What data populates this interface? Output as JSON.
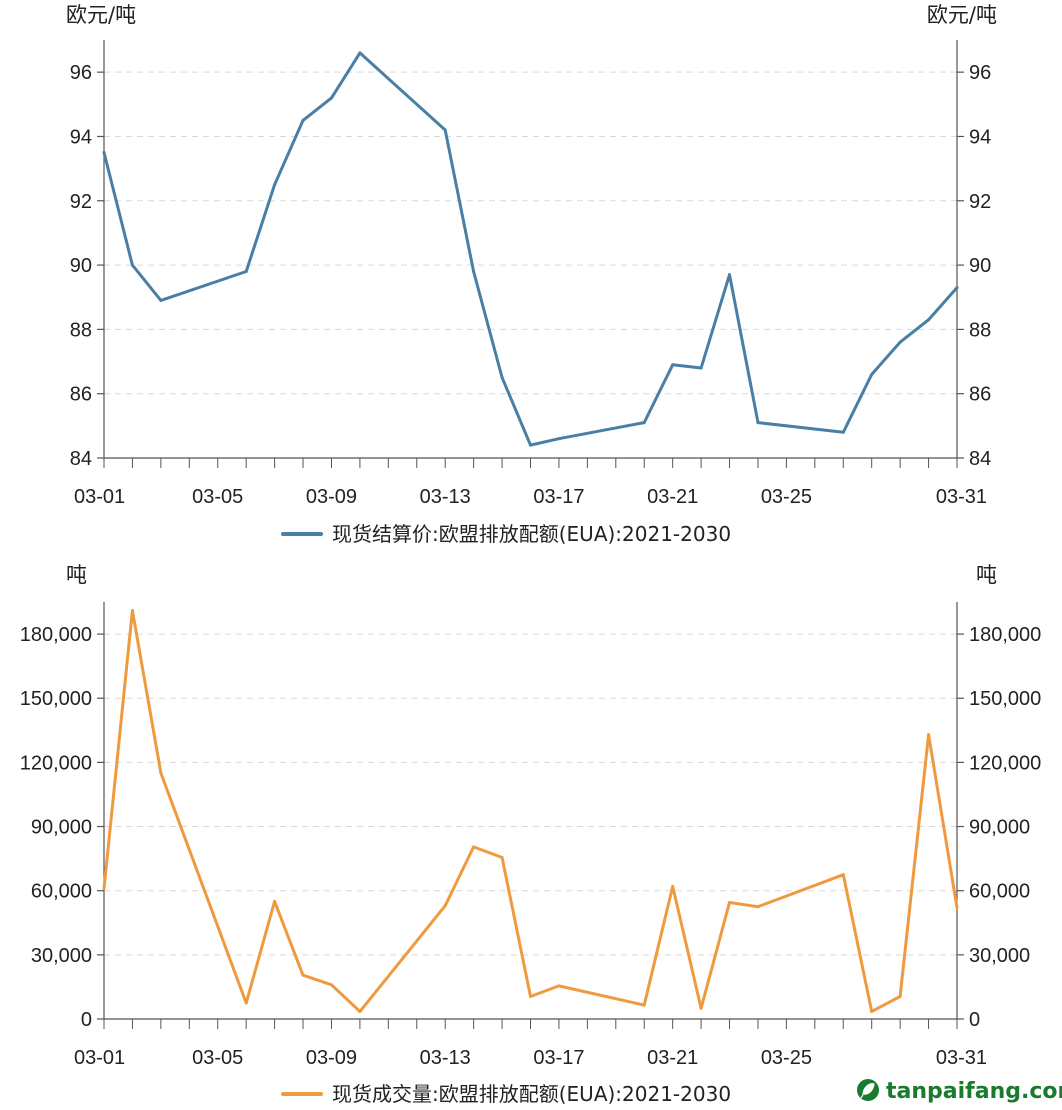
{
  "chart_data": [
    {
      "type": "line",
      "unit_left": "欧元/吨",
      "unit_right": "欧元/吨",
      "ylim": [
        84,
        97
      ],
      "yticks": [
        84,
        86,
        88,
        90,
        92,
        94,
        96
      ],
      "ytick_labels": [
        "84",
        "86",
        "88",
        "90",
        "92",
        "94",
        "96"
      ],
      "xticks": [
        "03-01",
        "03-05",
        "03-09",
        "03-13",
        "03-17",
        "03-21",
        "03-25",
        "03-31"
      ],
      "grid": true,
      "legend_placement": "bottom",
      "series": [
        {
          "name": "现货结算价:欧盟排放配额(EUA):2021-2030",
          "color": "#4a7fa5",
          "x": [
            "03-01",
            "03-02",
            "03-03",
            "03-06",
            "03-07",
            "03-08",
            "03-09",
            "03-10",
            "03-13",
            "03-14",
            "03-15",
            "03-16",
            "03-17",
            "03-20",
            "03-21",
            "03-22",
            "03-23",
            "03-24",
            "03-27",
            "03-28",
            "03-29",
            "03-30",
            "03-31"
          ],
          "values": [
            93.5,
            90.0,
            88.9,
            89.8,
            92.5,
            94.5,
            95.2,
            96.6,
            94.2,
            89.8,
            86.5,
            84.4,
            84.6,
            85.1,
            86.9,
            86.8,
            89.7,
            85.1,
            84.8,
            86.6,
            87.6,
            88.3,
            89.3
          ]
        }
      ]
    },
    {
      "type": "line",
      "unit_left": "吨",
      "unit_right": "吨",
      "ylim": [
        0,
        195000
      ],
      "yticks": [
        0,
        30000,
        60000,
        90000,
        120000,
        150000,
        180000
      ],
      "ytick_labels": [
        "0",
        "30,000",
        "60,000",
        "90,000",
        "120,000",
        "150,000",
        "180,000"
      ],
      "xticks": [
        "03-01",
        "03-05",
        "03-09",
        "03-13",
        "03-17",
        "03-21",
        "03-25",
        "03-31"
      ],
      "grid": true,
      "legend_placement": "bottom",
      "series": [
        {
          "name": "现货成交量:欧盟排放配额(EUA):2021-2030",
          "color": "#ef9a3f",
          "x": [
            "03-01",
            "03-02",
            "03-03",
            "03-06",
            "03-07",
            "03-08",
            "03-09",
            "03-10",
            "03-13",
            "03-14",
            "03-15",
            "03-16",
            "03-17",
            "03-20",
            "03-21",
            "03-22",
            "03-23",
            "03-24",
            "03-27",
            "03-28",
            "03-29",
            "03-30",
            "03-31"
          ],
          "values": [
            61000,
            191000,
            115000,
            7500,
            55000,
            20500,
            16000,
            3500,
            53000,
            80500,
            75500,
            10500,
            15500,
            6500,
            62000,
            5000,
            54500,
            52500,
            67500,
            3500,
            10500,
            133000,
            52000
          ]
        }
      ]
    }
  ],
  "watermark": {
    "text": "tanpaifang.com",
    "icon": "leaf-icon",
    "color": "#1a7a2e"
  }
}
